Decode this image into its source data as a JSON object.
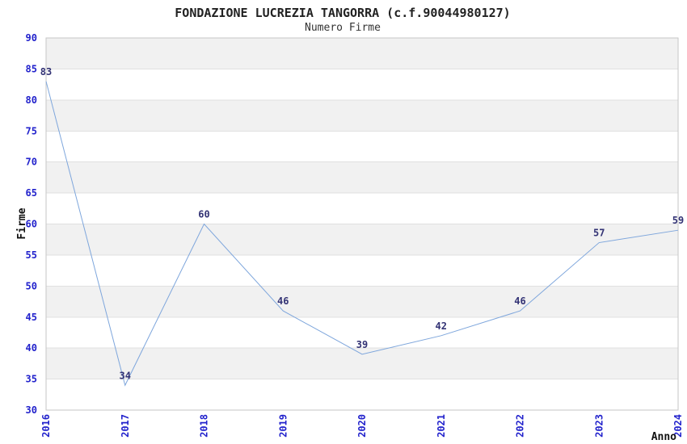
{
  "chart_data": {
    "type": "line",
    "title": "FONDAZIONE LUCREZIA TANGORRA (c.f.90044980127)",
    "subtitle": "Numero Firme",
    "xlabel": "Anno",
    "ylabel": "Firme",
    "categories": [
      "2016",
      "2017",
      "2018",
      "2019",
      "2020",
      "2021",
      "2022",
      "2023",
      "2024"
    ],
    "values": [
      83,
      34,
      60,
      46,
      39,
      42,
      46,
      57,
      59
    ],
    "ylim": [
      30,
      90
    ],
    "ytick_step": 5,
    "grid": "horizontal-bands",
    "legend": "none",
    "colors": {
      "line": "#7ea6dc",
      "tick_labels": "#2222cc",
      "data_labels": "#333375",
      "band_fill": "#f1f1f1",
      "gridline": "#e0e0e0",
      "plot_border": "#c6c6c6",
      "title": "#222222",
      "subtitle_color": "#333333",
      "background": "#ffffff"
    }
  }
}
